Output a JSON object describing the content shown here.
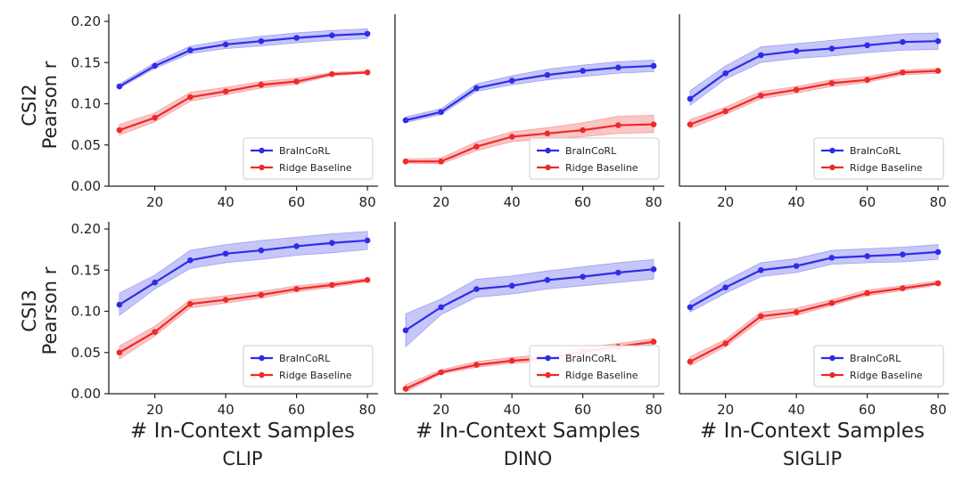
{
  "figure": {
    "x_axis_label": "# In-Context Samples",
    "y_axis_label": "Pearson r",
    "colors": {
      "brain": "#2d2de8",
      "ridge": "#ee2a2a"
    }
  },
  "chart_data": [
    {
      "type": "line",
      "row_label": "CSI2",
      "column_label": "CLIP",
      "xlabel": "# In-Context Samples",
      "ylabel": "Pearson r",
      "x": [
        10,
        20,
        30,
        40,
        50,
        60,
        70,
        80
      ],
      "xticks": [
        20,
        40,
        60,
        80
      ],
      "xlim": [
        7,
        83
      ],
      "ylim": [
        0,
        0.2
      ],
      "yticks": [
        "0.00",
        "0.05",
        "0.10",
        "0.15",
        "0.20"
      ],
      "legend_position": "lower-right",
      "series": [
        {
          "name": "BraInCoRL",
          "color": "#2d2de8",
          "values": [
            0.121,
            0.146,
            0.165,
            0.172,
            0.176,
            0.18,
            0.183,
            0.185
          ],
          "lower": [
            0.119,
            0.143,
            0.161,
            0.167,
            0.17,
            0.174,
            0.177,
            0.179
          ],
          "upper": [
            0.124,
            0.15,
            0.17,
            0.177,
            0.182,
            0.186,
            0.189,
            0.191
          ]
        },
        {
          "name": "Ridge Baseline",
          "color": "#ee2a2a",
          "values": [
            0.068,
            0.083,
            0.108,
            0.115,
            0.123,
            0.127,
            0.136,
            0.138
          ],
          "lower": [
            0.062,
            0.078,
            0.103,
            0.111,
            0.119,
            0.124,
            0.134,
            0.137
          ],
          "upper": [
            0.075,
            0.089,
            0.114,
            0.12,
            0.127,
            0.131,
            0.138,
            0.14
          ]
        }
      ]
    },
    {
      "type": "line",
      "row_label": "CSI2",
      "column_label": "DINO",
      "x": [
        10,
        20,
        30,
        40,
        50,
        60,
        70,
        80
      ],
      "xticks": [
        20,
        40,
        60,
        80
      ],
      "xlim": [
        7,
        83
      ],
      "ylim": [
        0,
        0.2
      ],
      "legend_position": "lower-right",
      "series": [
        {
          "name": "BraInCoRL",
          "color": "#2d2de8",
          "values": [
            0.08,
            0.09,
            0.119,
            0.128,
            0.135,
            0.14,
            0.144,
            0.146
          ],
          "lower": [
            0.077,
            0.087,
            0.115,
            0.123,
            0.129,
            0.133,
            0.137,
            0.139
          ],
          "upper": [
            0.084,
            0.094,
            0.124,
            0.134,
            0.142,
            0.147,
            0.151,
            0.153
          ]
        },
        {
          "name": "Ridge Baseline",
          "color": "#ee2a2a",
          "values": [
            0.03,
            0.03,
            0.048,
            0.06,
            0.064,
            0.068,
            0.074,
            0.075
          ],
          "lower": [
            0.028,
            0.027,
            0.043,
            0.054,
            0.057,
            0.06,
            0.064,
            0.065
          ],
          "upper": [
            0.033,
            0.034,
            0.054,
            0.066,
            0.071,
            0.077,
            0.085,
            0.086
          ]
        }
      ]
    },
    {
      "type": "line",
      "row_label": "CSI2",
      "column_label": "SIGLIP",
      "x": [
        10,
        20,
        30,
        40,
        50,
        60,
        70,
        80
      ],
      "xticks": [
        20,
        40,
        60,
        80
      ],
      "xlim": [
        7,
        83
      ],
      "ylim": [
        0,
        0.2
      ],
      "legend_position": "lower-right",
      "series": [
        {
          "name": "BraInCoRL",
          "color": "#2d2de8",
          "values": [
            0.106,
            0.137,
            0.159,
            0.164,
            0.167,
            0.171,
            0.175,
            0.176
          ],
          "lower": [
            0.098,
            0.13,
            0.15,
            0.155,
            0.158,
            0.162,
            0.165,
            0.166
          ],
          "upper": [
            0.116,
            0.146,
            0.169,
            0.173,
            0.177,
            0.181,
            0.185,
            0.186
          ]
        },
        {
          "name": "Ridge Baseline",
          "color": "#ee2a2a",
          "values": [
            0.075,
            0.091,
            0.11,
            0.117,
            0.125,
            0.129,
            0.138,
            0.14
          ],
          "lower": [
            0.07,
            0.087,
            0.106,
            0.113,
            0.121,
            0.126,
            0.135,
            0.137
          ],
          "upper": [
            0.081,
            0.096,
            0.115,
            0.121,
            0.129,
            0.133,
            0.141,
            0.143
          ]
        }
      ]
    },
    {
      "type": "line",
      "row_label": "CSI3",
      "column_label": "CLIP",
      "x": [
        10,
        20,
        30,
        40,
        50,
        60,
        70,
        80
      ],
      "xticks": [
        20,
        40,
        60,
        80
      ],
      "xlim": [
        7,
        83
      ],
      "ylim": [
        0,
        0.2
      ],
      "legend_position": "lower-right",
      "series": [
        {
          "name": "BraInCoRL",
          "color": "#2d2de8",
          "values": [
            0.108,
            0.135,
            0.162,
            0.17,
            0.174,
            0.179,
            0.183,
            0.186
          ],
          "lower": [
            0.095,
            0.127,
            0.152,
            0.159,
            0.163,
            0.168,
            0.171,
            0.175
          ],
          "upper": [
            0.122,
            0.144,
            0.174,
            0.181,
            0.186,
            0.19,
            0.194,
            0.197
          ]
        },
        {
          "name": "Ridge Baseline",
          "color": "#ee2a2a",
          "values": [
            0.05,
            0.075,
            0.109,
            0.114,
            0.12,
            0.127,
            0.132,
            0.138
          ],
          "lower": [
            0.042,
            0.07,
            0.104,
            0.11,
            0.116,
            0.124,
            0.129,
            0.136
          ],
          "upper": [
            0.058,
            0.082,
            0.114,
            0.119,
            0.124,
            0.131,
            0.135,
            0.14
          ]
        }
      ]
    },
    {
      "type": "line",
      "row_label": "CSI3",
      "column_label": "DINO",
      "x": [
        10,
        20,
        30,
        40,
        50,
        60,
        70,
        80
      ],
      "xticks": [
        20,
        40,
        60,
        80
      ],
      "xlim": [
        7,
        83
      ],
      "ylim": [
        0,
        0.2
      ],
      "legend_position": "lower-right",
      "series": [
        {
          "name": "BraInCoRL",
          "color": "#2d2de8",
          "values": [
            0.077,
            0.105,
            0.127,
            0.131,
            0.138,
            0.142,
            0.147,
            0.151
          ],
          "lower": [
            0.057,
            0.096,
            0.117,
            0.121,
            0.127,
            0.131,
            0.135,
            0.139
          ],
          "upper": [
            0.097,
            0.115,
            0.139,
            0.143,
            0.149,
            0.154,
            0.159,
            0.163
          ]
        },
        {
          "name": "Ridge Baseline",
          "color": "#ee2a2a",
          "values": [
            0.006,
            0.026,
            0.035,
            0.04,
            0.043,
            0.051,
            0.057,
            0.063
          ],
          "lower": [
            0.002,
            0.024,
            0.032,
            0.037,
            0.039,
            0.047,
            0.053,
            0.06
          ],
          "upper": [
            0.011,
            0.029,
            0.039,
            0.044,
            0.048,
            0.056,
            0.061,
            0.067
          ]
        }
      ]
    },
    {
      "type": "line",
      "row_label": "CSI3",
      "column_label": "SIGLIP",
      "x": [
        10,
        20,
        30,
        40,
        50,
        60,
        70,
        80
      ],
      "xticks": [
        20,
        40,
        60,
        80
      ],
      "xlim": [
        7,
        83
      ],
      "ylim": [
        0,
        0.2
      ],
      "legend_position": "lower-right",
      "series": [
        {
          "name": "BraInCoRL",
          "color": "#2d2de8",
          "values": [
            0.105,
            0.129,
            0.15,
            0.155,
            0.165,
            0.167,
            0.169,
            0.172
          ],
          "lower": [
            0.099,
            0.122,
            0.142,
            0.147,
            0.157,
            0.159,
            0.16,
            0.163
          ],
          "upper": [
            0.112,
            0.137,
            0.159,
            0.164,
            0.174,
            0.176,
            0.178,
            0.181
          ]
        },
        {
          "name": "Ridge Baseline",
          "color": "#ee2a2a",
          "values": [
            0.039,
            0.061,
            0.094,
            0.099,
            0.11,
            0.122,
            0.128,
            0.134
          ],
          "lower": [
            0.034,
            0.057,
            0.089,
            0.095,
            0.107,
            0.119,
            0.125,
            0.132
          ],
          "upper": [
            0.045,
            0.066,
            0.099,
            0.104,
            0.114,
            0.126,
            0.131,
            0.137
          ]
        }
      ]
    }
  ]
}
